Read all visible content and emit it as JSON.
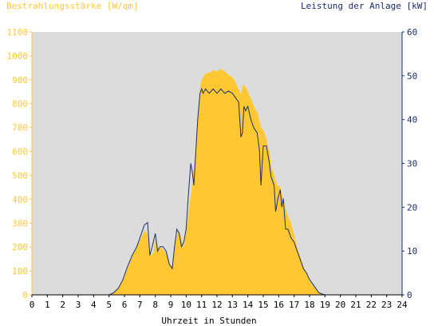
{
  "chart_data": {
    "type": "area",
    "left_axis_title": "Bestrahlungsstärke [W/qm]",
    "right_axis_title": "Leistung der Anlage [kW]",
    "xlabel": "Uhrzeit in Stunden",
    "xlim": [
      0,
      24
    ],
    "ylim_left": [
      0,
      1100
    ],
    "ylim_right": [
      0,
      60
    ],
    "x_ticks": [
      "0",
      "1",
      "2",
      "3",
      "4",
      "5",
      "6",
      "7",
      "8",
      "9",
      "10",
      "11",
      "12",
      "13",
      "14",
      "15",
      "16",
      "17",
      "18",
      "19",
      "20",
      "21",
      "22",
      "23",
      "24"
    ],
    "left_ticks": [
      "0",
      "100",
      "200",
      "300",
      "400",
      "500",
      "600",
      "700",
      "800",
      "900",
      "1000",
      "1100"
    ],
    "right_ticks": [
      "0",
      "10",
      "20",
      "30",
      "40",
      "50",
      "60"
    ],
    "colors": {
      "irradiance": "#ffc832",
      "power": "#1a2f6e",
      "left_axis_text": "#ffc832",
      "right_axis_text": "#1a2f6e",
      "plot_bg": "#dcdcdc"
    },
    "series": [
      {
        "name": "Bestrahlungsstärke",
        "unit": "W/qm",
        "axis": "left",
        "kind": "area",
        "x": [
          0,
          5.0,
          5.3,
          5.6,
          5.9,
          6.2,
          6.5,
          6.8,
          7.1,
          7.3,
          7.5,
          7.7,
          7.9,
          8.0,
          8.15,
          8.3,
          8.5,
          8.7,
          8.9,
          9.1,
          9.25,
          9.4,
          9.55,
          9.7,
          9.85,
          10.0,
          10.15,
          10.35,
          10.55,
          10.75,
          10.9,
          11.0,
          11.1,
          11.25,
          11.5,
          11.75,
          12.0,
          12.25,
          12.5,
          12.75,
          13.0,
          13.2,
          13.4,
          13.55,
          13.7,
          13.85,
          14.0,
          14.2,
          14.45,
          14.65,
          14.85,
          15.0,
          15.2,
          15.4,
          15.5,
          15.7,
          15.9,
          16.1,
          16.3,
          16.45,
          16.6,
          16.8,
          17.0,
          17.2,
          17.4,
          17.6,
          17.8,
          18.0,
          18.2,
          18.4,
          18.6,
          18.8,
          19.0,
          19.2,
          19.4,
          19.6,
          19.8,
          20.0,
          24
        ],
        "values": [
          0,
          0,
          10,
          30,
          60,
          110,
          160,
          200,
          240,
          270,
          250,
          160,
          180,
          235,
          195,
          200,
          190,
          175,
          140,
          110,
          190,
          250,
          270,
          230,
          200,
          260,
          340,
          440,
          560,
          720,
          860,
          900,
          910,
          925,
          930,
          940,
          935,
          945,
          935,
          920,
          910,
          890,
          860,
          840,
          880,
          870,
          850,
          820,
          780,
          760,
          700,
          690,
          650,
          600,
          540,
          500,
          460,
          450,
          400,
          360,
          330,
          300,
          250,
          200,
          160,
          120,
          90,
          60,
          40,
          25,
          12,
          5,
          0,
          0,
          0,
          0,
          0,
          0,
          0
        ]
      },
      {
        "name": "Leistung",
        "unit": "kW",
        "axis": "right",
        "kind": "line",
        "x": [
          0,
          5.0,
          5.3,
          5.6,
          5.9,
          6.2,
          6.5,
          6.8,
          7.1,
          7.3,
          7.5,
          7.65,
          7.8,
          8.0,
          8.15,
          8.3,
          8.5,
          8.7,
          8.9,
          9.1,
          9.25,
          9.4,
          9.55,
          9.7,
          9.85,
          10.0,
          10.15,
          10.3,
          10.4,
          10.5,
          10.6,
          10.75,
          10.9,
          11.0,
          11.1,
          11.25,
          11.5,
          11.75,
          12.0,
          12.25,
          12.5,
          12.75,
          13.0,
          13.2,
          13.4,
          13.55,
          13.65,
          13.75,
          13.85,
          14.0,
          14.2,
          14.4,
          14.6,
          14.75,
          14.85,
          15.0,
          15.2,
          15.4,
          15.5,
          15.7,
          15.8,
          15.95,
          16.1,
          16.2,
          16.3,
          16.45,
          16.6,
          16.8,
          17.0,
          17.2,
          17.4,
          17.6,
          17.8,
          18.0,
          18.2,
          18.4,
          18.6,
          18.8,
          19.0,
          19.2,
          19.4,
          19.6,
          19.8,
          20.0,
          24
        ],
        "values": [
          0,
          0,
          0.5,
          1.5,
          3.5,
          6.5,
          9,
          11,
          14,
          16,
          16.5,
          9,
          11,
          14,
          10,
          11,
          11,
          10,
          7,
          6,
          11,
          15,
          14,
          11,
          12,
          15,
          23,
          30,
          28,
          25,
          31,
          40,
          46,
          47,
          46,
          47,
          46,
          47,
          46,
          47,
          46,
          46.5,
          46,
          45,
          44,
          36,
          37,
          43,
          42,
          43,
          40,
          38,
          37,
          33,
          25,
          34,
          34,
          30,
          27,
          25,
          19,
          22,
          24,
          20,
          22,
          15,
          15,
          13,
          12,
          10,
          8,
          6,
          5,
          3.5,
          2.5,
          1.5,
          0.5,
          0.2,
          0,
          0,
          0,
          0,
          0,
          0,
          0
        ]
      }
    ],
    "grid": false,
    "legend": "none"
  }
}
